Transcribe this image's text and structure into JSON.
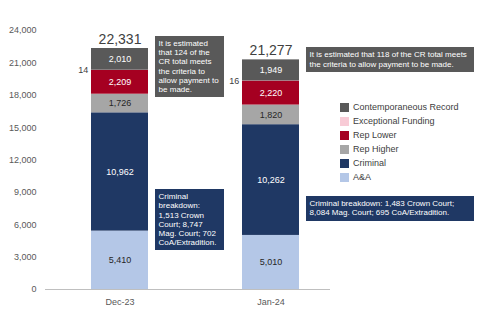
{
  "chart_data": {
    "type": "bar",
    "stacked": true,
    "data_labels": true,
    "grid": false,
    "legend": "right",
    "categories": [
      "Dec-23",
      "Jan-24"
    ],
    "series": [
      {
        "name": "A&A",
        "color": "#b4c7e7",
        "values": [
          5410,
          5010
        ],
        "value_labels": [
          "5,410",
          "5,010"
        ]
      },
      {
        "name": "Criminal",
        "color": "#1f3864",
        "values": [
          10962,
          10262
        ],
        "value_labels": [
          "10,962",
          "10,262"
        ]
      },
      {
        "name": "Rep Higher",
        "color": "#a6a6a6",
        "values": [
          1726,
          1820
        ],
        "value_labels": [
          "1,726",
          "1,820"
        ]
      },
      {
        "name": "Rep Lower",
        "color": "#a50021",
        "values": [
          2209,
          2220
        ],
        "value_labels": [
          "2,209",
          "2,220"
        ]
      },
      {
        "name": "Exceptional Funding",
        "color": "#f8cbd6",
        "values": [
          14,
          16
        ],
        "value_labels": [
          "14",
          "16"
        ]
      },
      {
        "name": "Contemporaneous Record",
        "color": "#595959",
        "values": [
          2010,
          1949
        ],
        "value_labels": [
          "2,010",
          "1,949"
        ]
      }
    ],
    "totals": [
      22331,
      21277
    ],
    "total_labels": [
      "22,331",
      "21,277"
    ],
    "ylim": [
      0,
      24000
    ],
    "yticks": [
      0,
      {
        "value": 3000,
        "label": "3,000"
      },
      {
        "value": 6000,
        "label": "6,000"
      },
      {
        "value": 9000,
        "label": "9,000"
      },
      {
        "value": 12000,
        "label": "12,000"
      },
      {
        "value": 15000,
        "label": "15,000"
      },
      {
        "value": 18000,
        "label": "18,000"
      },
      {
        "value": 21000,
        "label": "21,000"
      },
      {
        "value": 24000,
        "label": "24,000"
      }
    ],
    "annotations": [
      {
        "category": "Dec-23",
        "series": "Contemporaneous Record",
        "text": "It is estimated that 124 of the CR total meets the criteria to allow payment to be made."
      },
      {
        "category": "Dec-23",
        "series": "Criminal",
        "text": "Criminal breakdown: 1,513 Crown Court; 8,747 Mag. Court; 702 CoA/Extradition."
      },
      {
        "category": "Jan-24",
        "series": "Contemporaneous Record",
        "text": "It is estimated that 118 of the CR total meets the criteria to allow payment to be made."
      },
      {
        "category": "Jan-24",
        "series": "Criminal",
        "text": "Criminal breakdown: 1,483 Crown Court; 8,084 Mag. Court; 695 CoA/Extradition."
      }
    ]
  }
}
